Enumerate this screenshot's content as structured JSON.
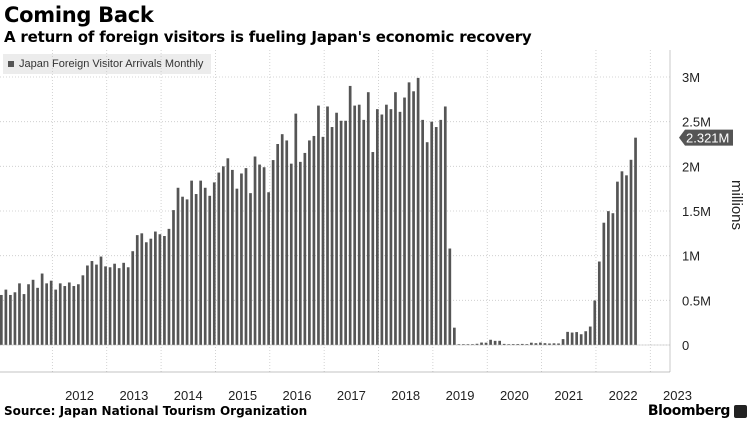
{
  "header": {
    "title": "Coming Back",
    "subtitle": "A return of foreign visitors is fueling Japan's economic recovery"
  },
  "legend": {
    "label": "Japan Foreign Visitor Arrivals Monthly"
  },
  "footer": {
    "source": "Source: Japan National Tourism Organization",
    "brand": "Bloomberg"
  },
  "colors": {
    "bar": "#555555",
    "grid": "#c8c8c8",
    "axis": "#888888",
    "label_bg": "#555555",
    "label_text": "#ffffff"
  },
  "chart_data": {
    "type": "bar",
    "start_year": 2011,
    "x_labels": [
      "2012",
      "2013",
      "2014",
      "2015",
      "2016",
      "2017",
      "2018",
      "2019",
      "2020",
      "2021",
      "2022",
      "2023"
    ],
    "y_ticks": [
      {
        "value": 3000000,
        "label": "3M"
      },
      {
        "value": 2500000,
        "label": "2.5M"
      },
      {
        "value": 2000000,
        "label": "2M"
      },
      {
        "value": 1500000,
        "label": "1.5M"
      },
      {
        "value": 1000000,
        "label": "1M"
      },
      {
        "value": 500000,
        "label": "0.5M"
      },
      {
        "value": 0,
        "label": "0"
      }
    ],
    "ylabel": "millions",
    "ylim": [
      0,
      3000000
    ],
    "last_value_label": "2.321M",
    "grid": true,
    "series": [
      {
        "name": "Japan Foreign Visitor Arrivals Monthly",
        "values": [
          560000,
          620000,
          560000,
          590000,
          690000,
          570000,
          680000,
          730000,
          640000,
          800000,
          690000,
          720000,
          620000,
          690000,
          660000,
          700000,
          660000,
          680000,
          780000,
          890000,
          940000,
          900000,
          990000,
          880000,
          870000,
          910000,
          860000,
          920000,
          870000,
          1050000,
          1230000,
          1250000,
          1150000,
          1190000,
          1270000,
          1240000,
          1220000,
          1300000,
          1510000,
          1760000,
          1660000,
          1630000,
          1840000,
          1690000,
          1840000,
          1760000,
          1670000,
          1820000,
          1930000,
          2000000,
          2090000,
          1960000,
          1750000,
          1920000,
          1980000,
          1700000,
          2110000,
          2020000,
          1990000,
          1710000,
          2070000,
          2250000,
          2360000,
          2290000,
          2030000,
          2590000,
          2050000,
          2150000,
          2290000,
          2340000,
          2680000,
          2330000,
          2670000,
          2440000,
          2600000,
          2510000,
          2510000,
          2900000,
          2680000,
          2690000,
          2520000,
          2830000,
          2160000,
          2640000,
          2580000,
          2690000,
          2640000,
          2830000,
          2610000,
          2770000,
          2940000,
          2840000,
          2990000,
          2520000,
          2270000,
          2500000,
          2440000,
          2520000,
          2670000,
          1080000,
          194000,
          2900,
          2600,
          3800,
          8600,
          13700,
          27400,
          25700,
          58700,
          46500,
          46900,
          12300,
          7400,
          10000,
          10400,
          12100,
          9900,
          25700,
          20300,
          27100,
          20400,
          16700,
          18700,
          17100,
          66100,
          147000,
          139400,
          144600,
          120400,
          154000,
          206600,
          498600,
          934500,
          1369000,
          1498300,
          1475300,
          1828500,
          1944200,
          1899200,
          2073300,
          2321000
        ]
      }
    ]
  }
}
